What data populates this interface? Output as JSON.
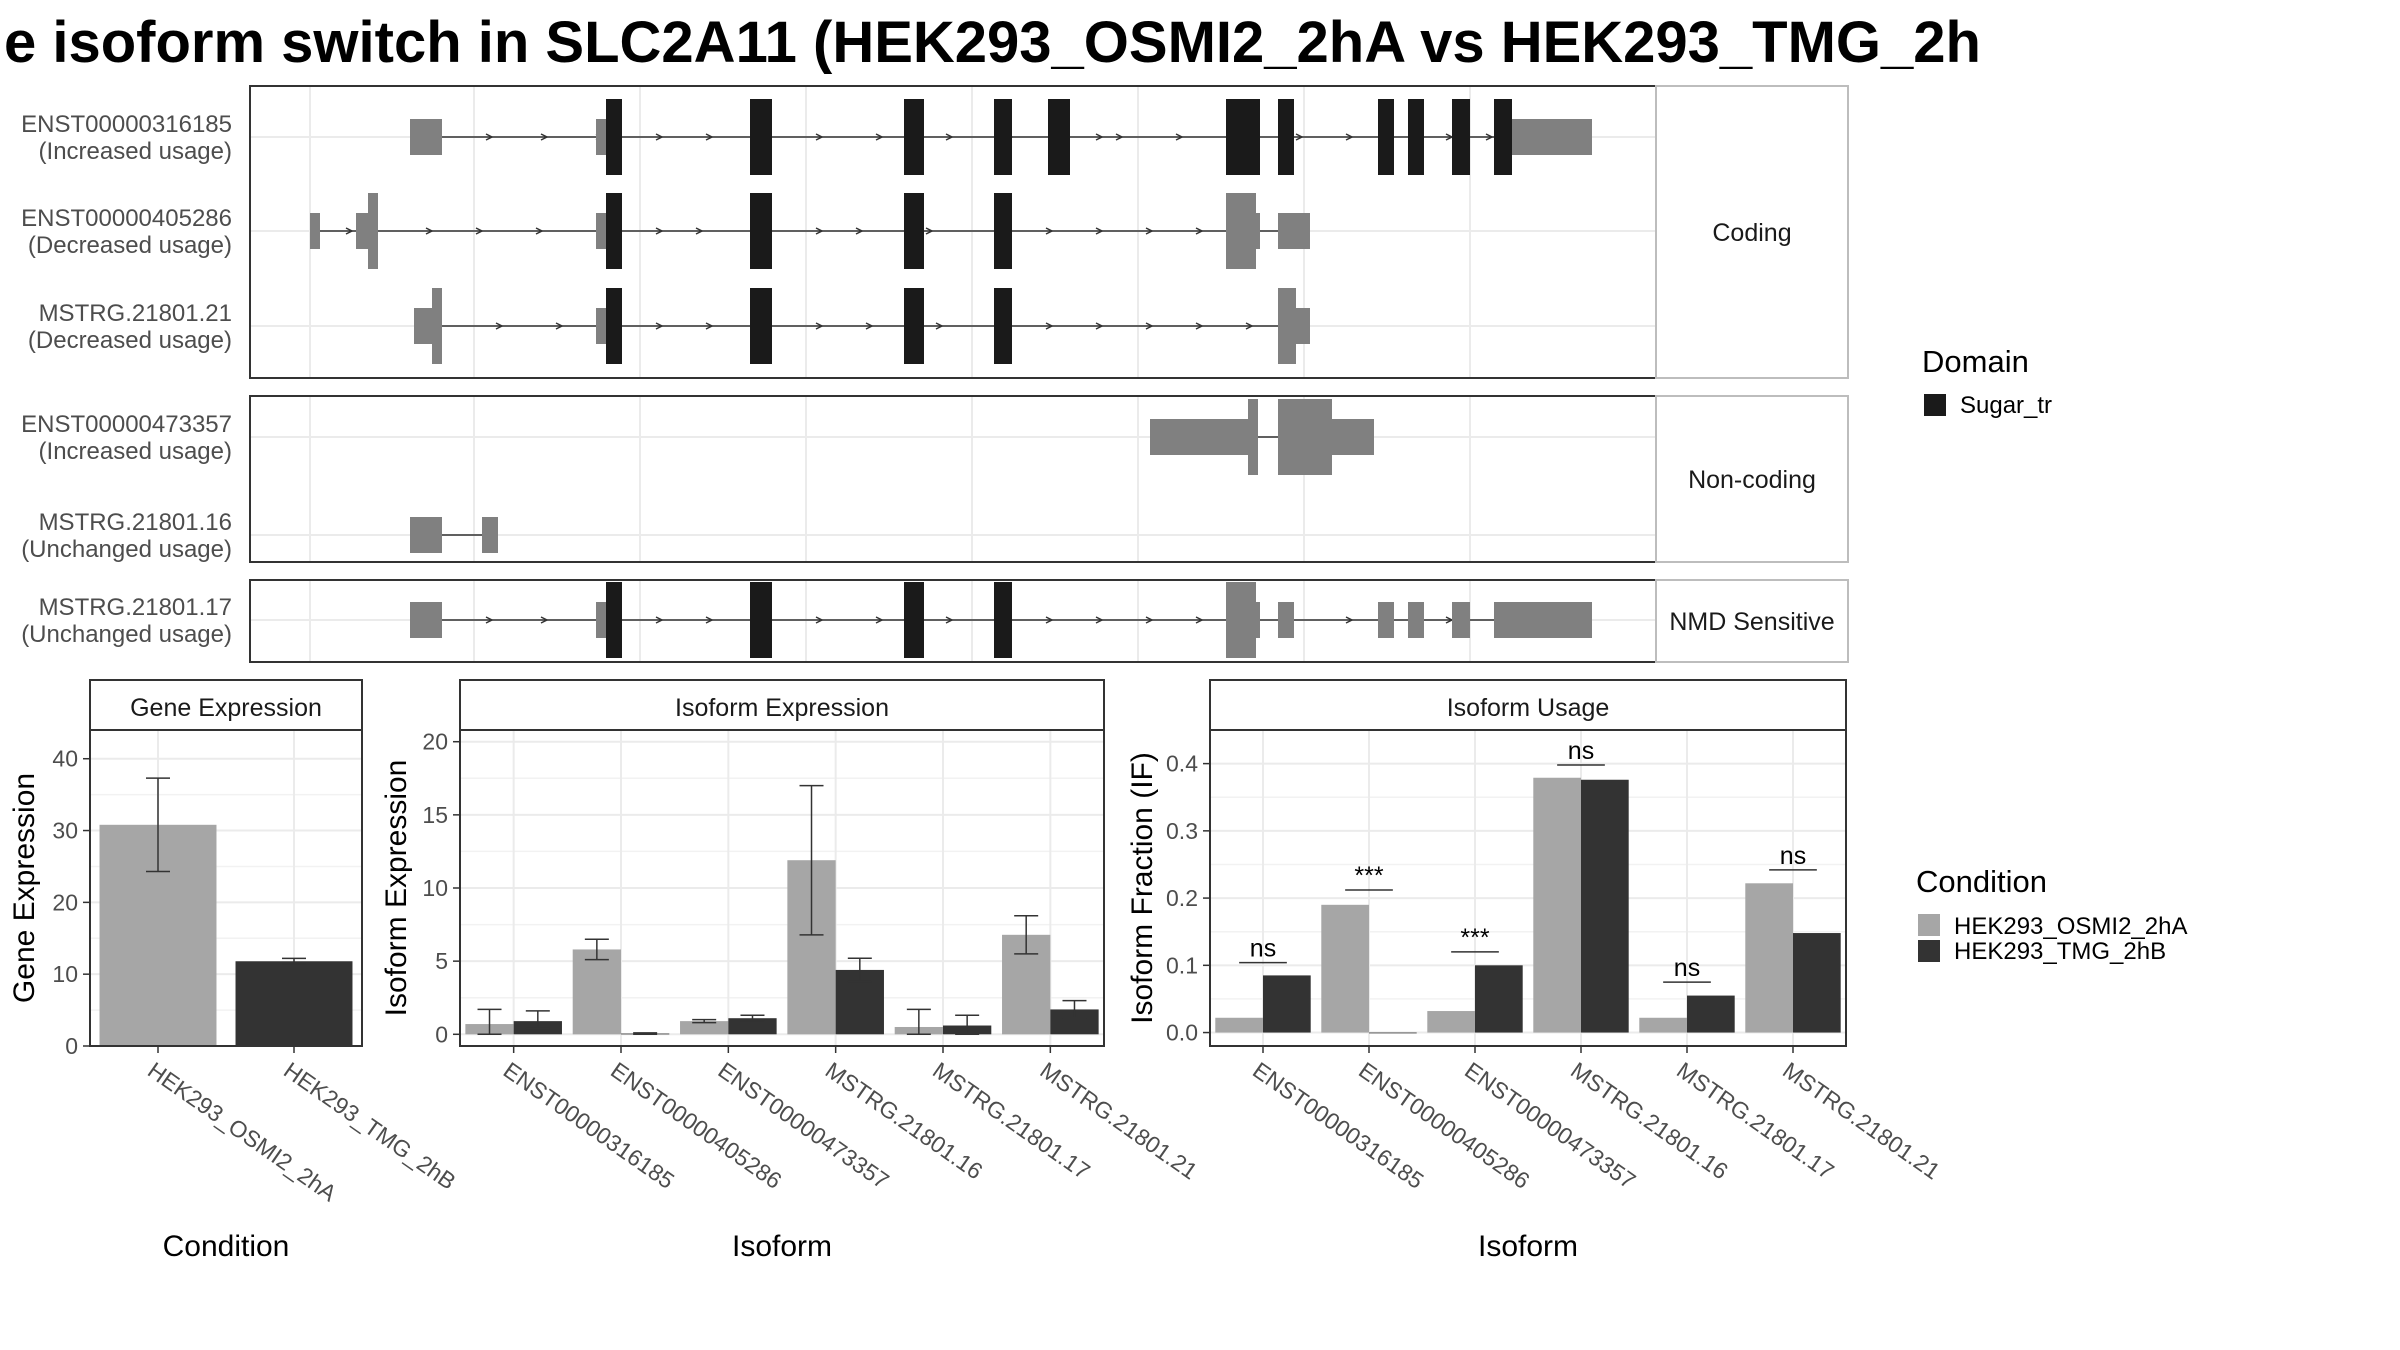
{
  "title": "e isoform switch in SLC2A11 (HEK293_OSMI2_2hA vs HEK293_TMG_2h",
  "colors": {
    "domain": "#1a1a1a",
    "exon": "#808080",
    "cond1": "#a6a6a6",
    "cond2": "#333333",
    "grid": "#ebebeb",
    "strip_bg": "#ffffff",
    "panel_border": "#333333"
  },
  "structure": {
    "groups": [
      "Coding",
      "Non-coding",
      "NMD Sensitive"
    ],
    "transcripts": [
      {
        "id": "ENST00000316185",
        "usage": "(Increased usage)",
        "group": "Coding"
      },
      {
        "id": "ENST00000405286",
        "usage": "(Decreased usage)",
        "group": "Coding"
      },
      {
        "id": "MSTRG.21801.21",
        "usage": "(Decreased usage)",
        "group": "Coding"
      },
      {
        "id": "ENST00000473357",
        "usage": "(Increased usage)",
        "group": "Non-coding"
      },
      {
        "id": "MSTRG.21801.16",
        "usage": "(Unchanged usage)",
        "group": "Non-coding"
      },
      {
        "id": "MSTRG.21801.17",
        "usage": "(Unchanged usage)",
        "group": "NMD Sensitive"
      }
    ]
  },
  "legend_domain": {
    "title": "Domain",
    "items": [
      "Sugar_tr"
    ]
  },
  "legend_condition": {
    "title": "Condition",
    "items": [
      "HEK293_OSMI2_2hA",
      "HEK293_TMG_2hB"
    ]
  },
  "chart_data": [
    {
      "type": "bar",
      "title": "Gene Expression",
      "xlabel": "Condition",
      "ylabel": "Gene Expression",
      "categories": [
        "HEK293_OSMI2_2hA",
        "HEK293_TMG_2hB"
      ],
      "values": [
        30.8,
        11.8
      ],
      "error_low": [
        24.3,
        11.4
      ],
      "error_high": [
        37.3,
        12.2
      ],
      "ylim": [
        0,
        44
      ],
      "yticks": [
        0,
        10,
        20,
        30,
        40
      ]
    },
    {
      "type": "bar",
      "title": "Isoform Expression",
      "xlabel": "Isoform",
      "ylabel": "Isoform Expression",
      "categories": [
        "ENST00000316185",
        "ENST00000405286",
        "ENST00000473357",
        "MSTRG.21801.16",
        "MSTRG.21801.17",
        "MSTRG.21801.21"
      ],
      "series": [
        {
          "name": "HEK293_OSMI2_2hA",
          "values": [
            0.7,
            5.8,
            0.9,
            11.9,
            0.5,
            6.8
          ],
          "error_low": [
            0.0,
            5.1,
            0.8,
            6.8,
            0.0,
            5.5
          ],
          "error_high": [
            1.7,
            6.5,
            1.0,
            17.0,
            1.7,
            8.1
          ]
        },
        {
          "name": "HEK293_TMG_2hB",
          "values": [
            0.9,
            0.05,
            1.1,
            4.4,
            0.6,
            1.7
          ],
          "error_low": [
            0.4,
            0.0,
            0.9,
            3.6,
            0.0,
            1.1
          ],
          "error_high": [
            1.6,
            0.1,
            1.3,
            5.2,
            1.3,
            2.3
          ]
        }
      ],
      "ylim": [
        -0.8,
        20.8
      ],
      "yticks": [
        0,
        5,
        10,
        15,
        20
      ]
    },
    {
      "type": "bar",
      "title": "Isoform Usage",
      "xlabel": "Isoform",
      "ylabel": "Isoform Fraction (IF)",
      "categories": [
        "ENST00000316185",
        "ENST00000405286",
        "ENST00000473357",
        "MSTRG.21801.16",
        "MSTRG.21801.17",
        "MSTRG.21801.21"
      ],
      "series": [
        {
          "name": "HEK293_OSMI2_2hA",
          "values": [
            0.022,
            0.19,
            0.032,
            0.379,
            0.022,
            0.222
          ]
        },
        {
          "name": "HEK293_TMG_2hB",
          "values": [
            0.085,
            0.0,
            0.1,
            0.376,
            0.055,
            0.148
          ]
        }
      ],
      "significance": [
        "ns",
        "***",
        "***",
        "ns",
        "ns",
        "ns"
      ],
      "sig_y": [
        0.104,
        0.212,
        0.12,
        0.398,
        0.075,
        0.242
      ],
      "ylim": [
        -0.02,
        0.45
      ],
      "yticks": [
        0.0,
        0.1,
        0.2,
        0.3,
        0.4
      ]
    }
  ]
}
